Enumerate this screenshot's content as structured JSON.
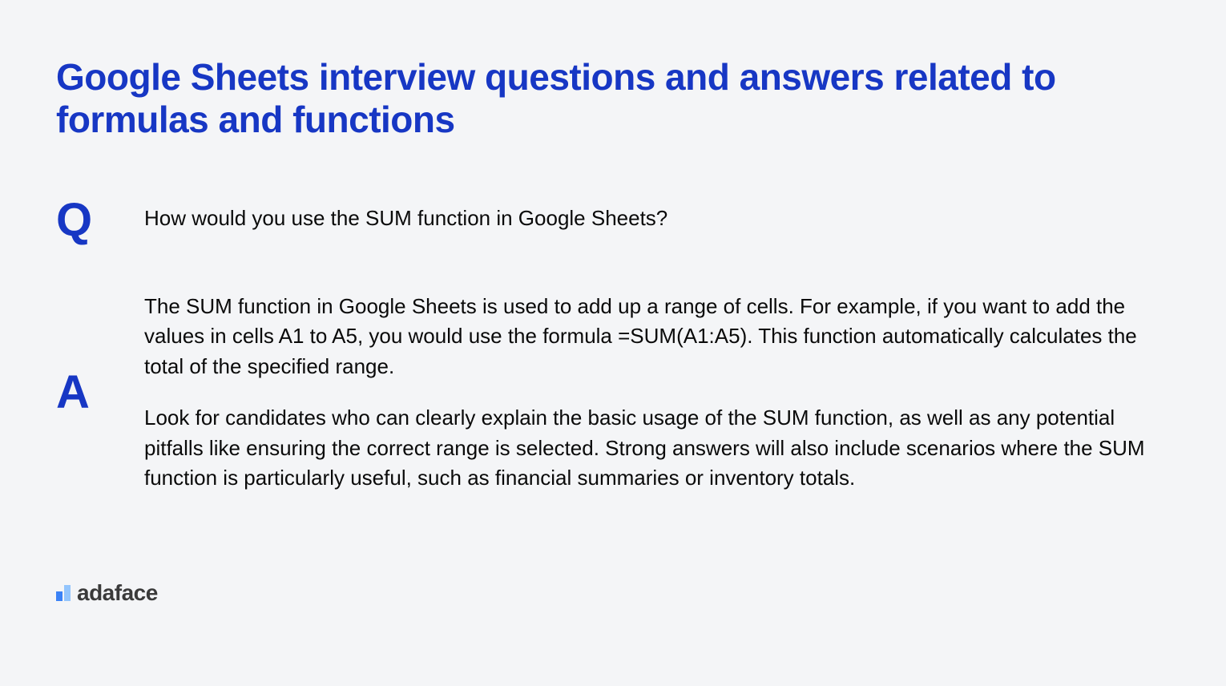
{
  "title": "Google Sheets interview questions and answers related to formulas and functions",
  "question": {
    "label": "Q",
    "text": "How would you use the SUM function in Google Sheets?"
  },
  "answer": {
    "label": "A",
    "paragraphs": [
      "The SUM function in Google Sheets is used to add up a range of cells. For example, if you want to add the values in cells A1 to A5, you would use the formula =SUM(A1:A5). This function automatically calculates the total of the specified range.",
      "Look for candidates who can clearly explain the basic usage of the SUM function, as well as any potential pitfalls like ensuring the correct range is selected. Strong answers will also include scenarios where the SUM function is particularly useful, such as financial summaries or inventory totals."
    ]
  },
  "logo": {
    "text": "adaface",
    "bar_colors": [
      "#3b82f6",
      "#93c5fd"
    ]
  },
  "colors": {
    "background": "#f4f5f7",
    "primary": "#1737c4",
    "text": "#0a0a0a",
    "logo_text": "#3a3a3a"
  },
  "typography": {
    "title_fontsize": 46,
    "label_fontsize": 58,
    "body_fontsize": 26,
    "logo_fontsize": 28
  }
}
